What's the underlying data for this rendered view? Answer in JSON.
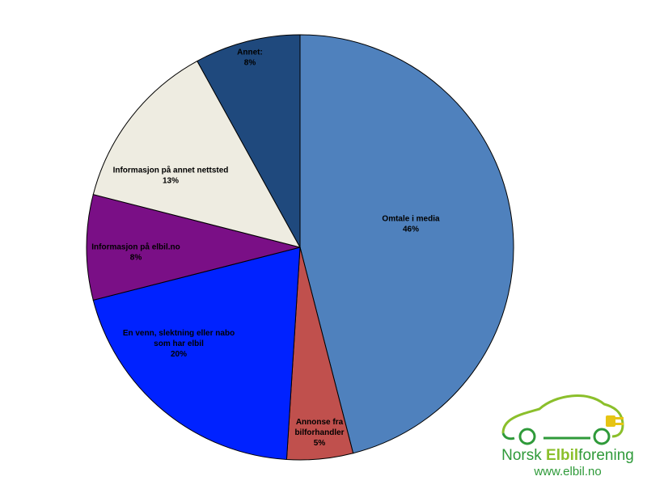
{
  "chart_data": {
    "type": "pie",
    "title": "",
    "slices": [
      {
        "name": "Omtale i media",
        "pct_label": "46%",
        "value": 46,
        "color": "#4f81bd"
      },
      {
        "name": "Annonse fra bilforhandler",
        "pct_label": "5%",
        "value": 5,
        "color": "#c0504d"
      },
      {
        "name": "En venn, slektning eller nabo som har elbil",
        "pct_label": "20%",
        "value": 20,
        "color": "#0022ff"
      },
      {
        "name": "Informasjon på elbil.no",
        "pct_label": "8%",
        "value": 8,
        "color": "#7a0f86"
      },
      {
        "name": "Informasjon på annet nettsted",
        "pct_label": "13%",
        "value": 13,
        "color": "#eeece1"
      },
      {
        "name": "Annet:",
        "pct_label": "8%",
        "value": 8,
        "color": "#1f497d"
      }
    ]
  },
  "logo": {
    "name_part1": "Norsk ",
    "name_part2": "Elbil",
    "name_part3": "forening",
    "url": "www.elbil.no"
  }
}
